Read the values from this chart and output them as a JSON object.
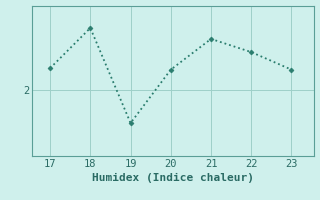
{
  "x": [
    17,
    18,
    19,
    20,
    21,
    22,
    23
  ],
  "y": [
    2.3,
    2.85,
    1.55,
    2.28,
    2.7,
    2.52,
    2.28
  ],
  "line_color": "#2a7d6e",
  "marker": "D",
  "marker_size": 2.5,
  "background_color": "#cff0ec",
  "grid_color": "#9ecfc8",
  "spine_color": "#5a9e96",
  "xlabel": "Humidex (Indice chaleur)",
  "xlabel_fontsize": 8,
  "tick_fontsize": 7.5,
  "ytick_labels": [
    "2"
  ],
  "ytick_values": [
    2
  ],
  "xlim": [
    16.55,
    23.55
  ],
  "ylim": [
    1.1,
    3.15
  ],
  "xticks": [
    17,
    18,
    19,
    20,
    21,
    22,
    23
  ]
}
